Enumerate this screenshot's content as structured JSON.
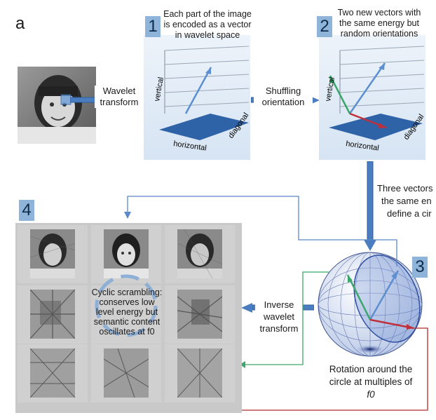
{
  "panel_letter": "a",
  "step1": {
    "badge": "1",
    "caption_lines": [
      "Each part of the image",
      "is encoded as a vector",
      "in wavelet space"
    ]
  },
  "step2": {
    "badge": "2",
    "caption_lines": [
      "Two new vectors with",
      "the same energy but",
      "random orientations"
    ]
  },
  "step3": {
    "badge": "3",
    "caption_lines": [
      "Three vectors",
      "the same en",
      "define a cir"
    ]
  },
  "step4": {
    "badge": "4"
  },
  "arrows": {
    "wavelet_transform": [
      "Wavelet",
      "transform"
    ],
    "shuffling_orientation": [
      "Shuffling",
      "orientation"
    ],
    "inverse_wavelet_transform": [
      "Inverse",
      "wavelet",
      "transform"
    ]
  },
  "axes": {
    "vertical": "vertical",
    "horizontal": "horizontal",
    "diagonal": "diagonal"
  },
  "cycle_lines": [
    "Cyclic scrambling:",
    "conserves low",
    "level energy but",
    "semantic content",
    "oscillates  at f0"
  ],
  "rotation_lines": [
    "Rotation around the",
    "circle at multiples of",
    "f0"
  ],
  "colors": {
    "badge": "#8eb4d9",
    "flow_arrow": "#4a7dbf",
    "vector_blue": "#5b8fd0",
    "vector_green": "#3aa66a",
    "vector_red": "#c0303a",
    "link_blue": "#5a88c8",
    "link_green": "#3aa66a",
    "link_red": "#b02a2a"
  }
}
